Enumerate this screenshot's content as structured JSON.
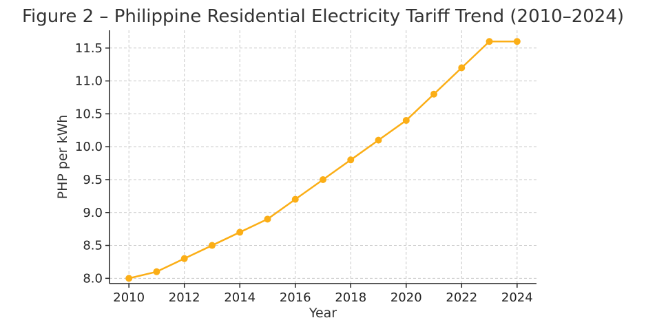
{
  "colors": {
    "series": "#FBAE16",
    "grid": "#c8c8c8",
    "axis": "#222222",
    "text": "#333333"
  },
  "chart_data": {
    "type": "line",
    "title": "Figure 2 – Philippine Residential Electricity Tariff Trend (2010–2024)",
    "xlabel": "Year",
    "ylabel": "PHP per kWh",
    "xlim": [
      2009.3,
      2024.7
    ],
    "ylim": [
      7.92,
      11.77
    ],
    "grid": true,
    "legend": "none",
    "x_ticks": [
      2010,
      2012,
      2014,
      2016,
      2018,
      2020,
      2022,
      2024
    ],
    "x_tick_labels": [
      "2010",
      "2012",
      "2014",
      "2016",
      "2018",
      "2020",
      "2022",
      "2024"
    ],
    "y_ticks": [
      8.0,
      8.5,
      9.0,
      9.5,
      10.0,
      10.5,
      11.0,
      11.5
    ],
    "y_tick_labels": [
      "8.0",
      "8.5",
      "9.0",
      "9.5",
      "10.0",
      "10.5",
      "11.0",
      "11.5"
    ],
    "series": [
      {
        "x": [
          2010,
          2011,
          2012,
          2013,
          2014,
          2015,
          2016,
          2017,
          2018,
          2019,
          2020,
          2021,
          2022,
          2023,
          2024
        ],
        "values": [
          8.0,
          8.1,
          8.3,
          8.5,
          8.7,
          8.9,
          9.2,
          9.5,
          9.8,
          10.1,
          10.4,
          10.8,
          11.2,
          11.6,
          11.6
        ],
        "color": "#FBAE16",
        "marker": "circle"
      }
    ]
  }
}
